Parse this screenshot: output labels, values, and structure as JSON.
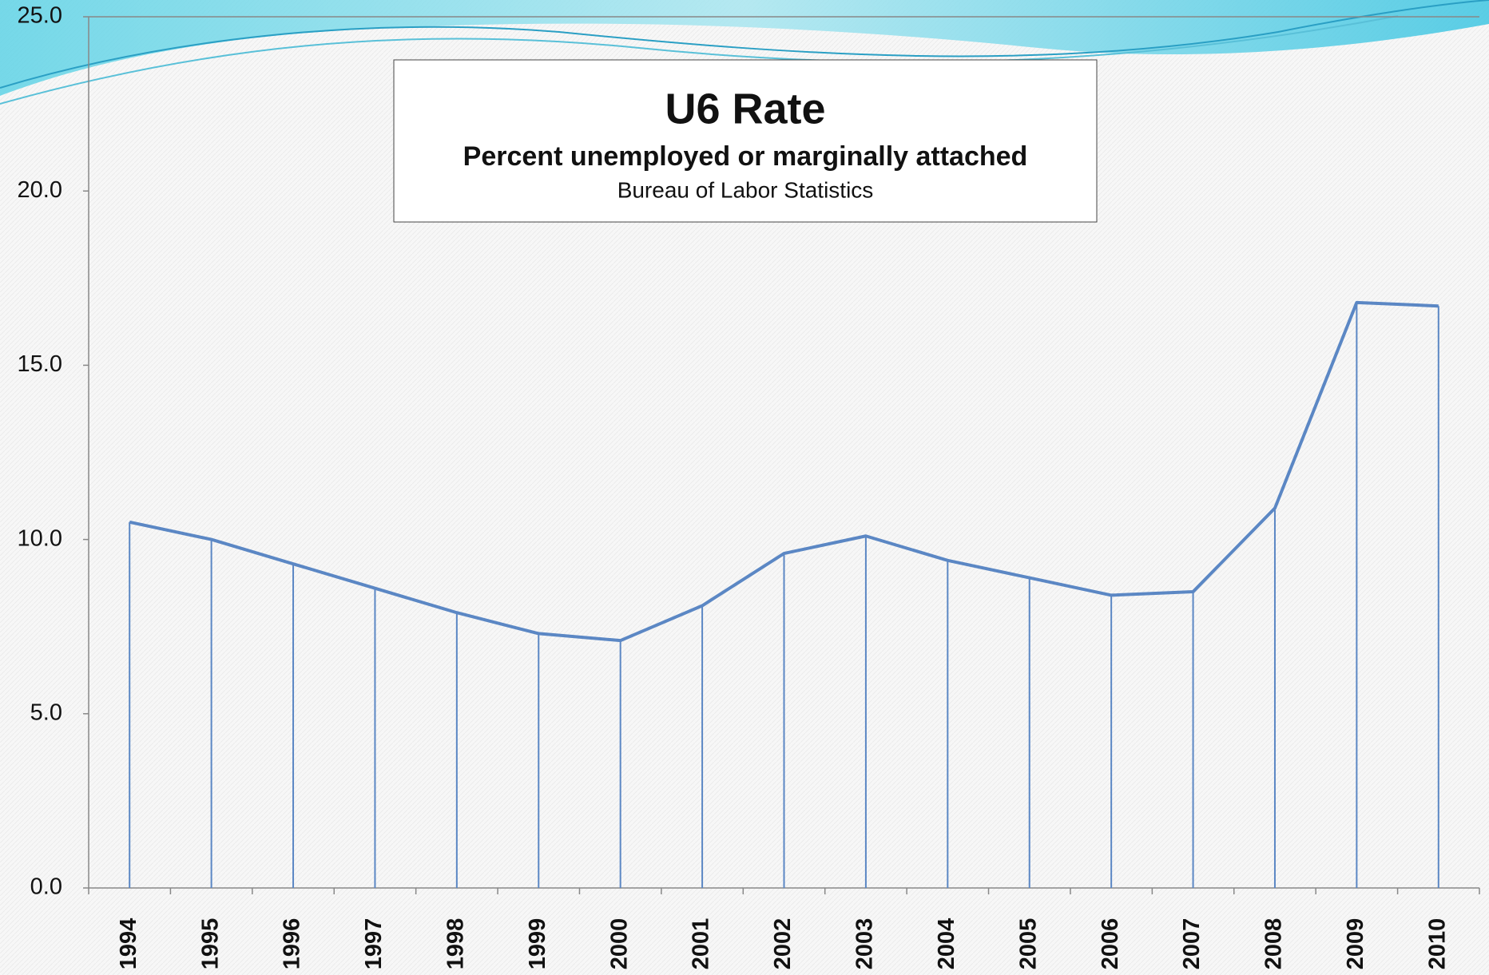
{
  "chart_data": {
    "type": "line",
    "title": "U6 Rate",
    "subtitle": "Percent unemployed or marginally attached",
    "source": "Bureau of Labor Statistics",
    "categories": [
      "1994",
      "1995",
      "1996",
      "1997",
      "1998",
      "1999",
      "2000",
      "2001",
      "2002",
      "2003",
      "2004",
      "2005",
      "2006",
      "2007",
      "2008",
      "2009",
      "2010"
    ],
    "values": [
      10.5,
      10.0,
      9.3,
      8.6,
      7.9,
      7.3,
      7.1,
      8.1,
      9.6,
      10.1,
      9.4,
      8.9,
      8.4,
      8.5,
      10.9,
      16.8,
      16.7
    ],
    "color": "#5b87c4",
    "drop_lines": true,
    "ylim": [
      0,
      25
    ],
    "yticks": [
      {
        "value": 0,
        "label": "0.0"
      },
      {
        "value": 5,
        "label": "5.0"
      },
      {
        "value": 10,
        "label": "10.0"
      },
      {
        "value": 15,
        "label": "15.0"
      },
      {
        "value": 20,
        "label": "20.0"
      },
      {
        "value": 25,
        "label": "25.0"
      }
    ]
  }
}
